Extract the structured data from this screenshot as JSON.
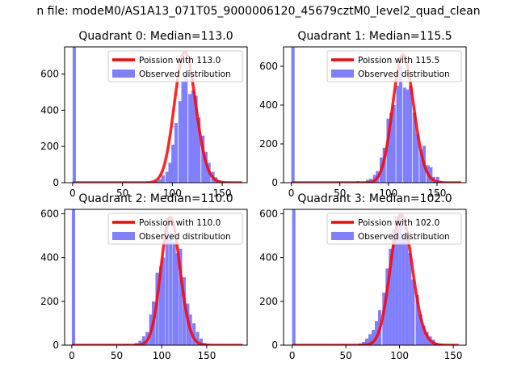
{
  "figure_title": "n file: modeM0/AS1A13_071T05_9000006120_45679cztM0_level2_quad_clean",
  "colors": {
    "hist": "#8080ff",
    "fit": "#ff0000",
    "axis": "#000000",
    "bg": "#ffffff"
  },
  "chart_data": [
    {
      "type": "bar+line",
      "title": "Quadrant 0: Median=113.0",
      "xlim": [
        -8,
        175
      ],
      "ylim": [
        0,
        750
      ],
      "xticks": [
        0,
        50,
        100,
        150
      ],
      "yticks": [
        0,
        200,
        400,
        600
      ],
      "legend_position": "upper right",
      "legend": [
        "Poission with 113.0",
        "Observed distribution"
      ],
      "hist": {
        "bin_width": 3.3,
        "x": [
          0,
          76,
          79,
          83,
          86,
          89,
          93,
          96,
          99,
          102,
          106,
          109,
          112,
          116,
          119,
          122,
          125,
          129,
          132,
          135,
          139,
          142,
          145,
          148,
          152
        ],
        "y": [
          750,
          3,
          5,
          10,
          18,
          40,
          60,
          110,
          210,
          330,
          450,
          560,
          600,
          490,
          510,
          480,
          360,
          260,
          170,
          110,
          60,
          30,
          15,
          6,
          2
        ]
      },
      "poisson_mean": 113.0,
      "poisson_scale": 722,
      "fit_range": [
        0,
        170
      ]
    },
    {
      "type": "bar+line",
      "title": "Quadrant 1: Median=115.5",
      "xlim": [
        -8,
        180
      ],
      "ylim": [
        0,
        700
      ],
      "xticks": [
        0,
        50,
        100,
        150
      ],
      "yticks": [
        0,
        200,
        400,
        600
      ],
      "legend_position": "upper right",
      "legend": [
        "Poission with 115.5",
        "Observed distribution"
      ],
      "hist": {
        "bin_width": 3.4,
        "x": [
          0,
          63,
          67,
          77,
          80,
          84,
          87,
          91,
          94,
          98,
          101,
          104,
          108,
          111,
          115,
          118,
          121,
          125,
          128,
          132,
          135,
          139,
          142,
          145,
          149,
          152
        ],
        "y": [
          700,
          5,
          8,
          15,
          20,
          40,
          60,
          130,
          180,
          330,
          360,
          400,
          500,
          600,
          490,
          480,
          500,
          360,
          250,
          170,
          190,
          90,
          80,
          30,
          30,
          10
        ]
      },
      "poisson_mean": 115.5,
      "poisson_scale": 660,
      "fit_range": [
        0,
        175
      ]
    },
    {
      "type": "bar+line",
      "title": "Quadrant 2: Median=110.0",
      "xlim": [
        -8,
        195
      ],
      "ylim": [
        0,
        620
      ],
      "xticks": [
        0,
        50,
        100,
        150
      ],
      "yticks": [
        0,
        200,
        400,
        600
      ],
      "legend_position": "upper right",
      "legend": [
        "Poission with 110.0",
        "Observed distribution"
      ],
      "hist": {
        "bin_width": 3.7,
        "x": [
          0,
          15,
          60,
          70,
          74,
          78,
          82,
          86,
          89,
          93,
          97,
          100,
          104,
          108,
          112,
          115,
          119,
          123,
          127,
          130,
          134,
          138,
          142,
          146,
          150
        ],
        "y": [
          620,
          3,
          5,
          10,
          20,
          40,
          60,
          140,
          200,
          330,
          360,
          400,
          580,
          510,
          470,
          420,
          440,
          310,
          190,
          140,
          100,
          60,
          30,
          10,
          5
        ]
      },
      "poisson_mean": 110.0,
      "poisson_scale": 585,
      "fit_range": [
        0,
        190
      ]
    },
    {
      "type": "bar+line",
      "title": "Quadrant 3: Median=102.0",
      "xlim": [
        -8,
        162
      ],
      "ylim": [
        0,
        620
      ],
      "xticks": [
        0,
        50,
        100,
        150
      ],
      "yticks": [
        0,
        200,
        400,
        600
      ],
      "legend_position": "upper right",
      "legend": [
        "Poission with 102.0",
        "Observed distribution"
      ],
      "hist": {
        "bin_width": 3.1,
        "x": [
          0,
          56,
          62,
          65,
          68,
          71,
          74,
          77,
          80,
          84,
          87,
          90,
          93,
          96,
          99,
          102,
          105,
          108,
          111,
          115,
          118,
          121,
          124,
          127,
          130,
          133,
          136
        ],
        "y": [
          620,
          3,
          8,
          15,
          30,
          50,
          70,
          110,
          160,
          240,
          350,
          440,
          530,
          590,
          600,
          510,
          500,
          420,
          300,
          230,
          140,
          90,
          60,
          40,
          25,
          10,
          5
        ]
      },
      "poisson_mean": 102.0,
      "poisson_scale": 595,
      "fit_range": [
        0,
        155
      ]
    }
  ]
}
